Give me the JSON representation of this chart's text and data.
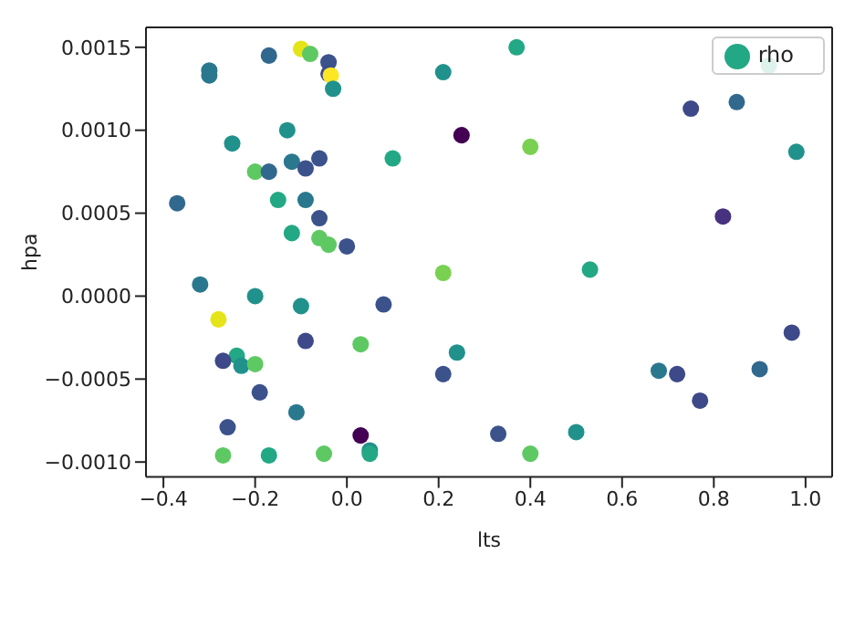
{
  "chart_data": {
    "type": "scatter",
    "xlabel": "lts",
    "ylabel": "hpa",
    "legend": "top right",
    "grid": false,
    "marker": "circle",
    "xlim": [
      -0.438,
      1.058
    ],
    "ylim": [
      -0.00109,
      0.00162
    ],
    "xticks": [
      {
        "value": -0.4,
        "label": "−0.4"
      },
      {
        "value": -0.2,
        "label": "−0.2"
      },
      {
        "value": 0,
        "label": "0.0"
      },
      {
        "value": 0.2,
        "label": "0.2"
      },
      {
        "value": 0.4,
        "label": "0.4"
      },
      {
        "value": 0.6,
        "label": "0.6"
      },
      {
        "value": 0.8,
        "label": "0.8"
      },
      {
        "value": 1.0,
        "label": "1.0"
      }
    ],
    "yticks": [
      {
        "value": -0.001,
        "label": "−0.0010"
      },
      {
        "value": -0.0005,
        "label": "−0.0005"
      },
      {
        "value": 0,
        "label": "0.0000"
      },
      {
        "value": 0.0005,
        "label": "0.0005"
      },
      {
        "value": 0.001,
        "label": "0.0010"
      },
      {
        "value": 0.0015,
        "label": "0.0015"
      }
    ],
    "series": [
      {
        "name": "rho",
        "color": "#22a884",
        "x": [
          -0.3,
          -0.3,
          -0.17,
          -0.1,
          -0.08,
          -0.04,
          -0.04,
          -0.035,
          -0.03,
          0.21,
          0.25,
          -0.25,
          -0.13,
          -0.2,
          -0.17,
          -0.12,
          -0.06,
          -0.09,
          0.1,
          -0.37,
          -0.15,
          -0.09,
          -0.06,
          -0.12,
          -0.06,
          -0.04,
          0.0,
          0.21,
          0.37,
          0.92,
          0.85,
          0.75,
          0.4,
          0.98,
          0.82,
          0.53,
          -0.32,
          -0.2,
          -0.1,
          0.08,
          -0.28,
          -0.09,
          0.03,
          -0.24,
          0.24,
          -0.27,
          -0.23,
          -0.2,
          0.21,
          -0.19,
          -0.11,
          -0.26,
          0.03,
          -0.27,
          -0.17,
          -0.05,
          0.05,
          0.05,
          0.33,
          0.5,
          0.4,
          0.68,
          0.72,
          0.77,
          0.9,
          0.97
        ],
        "values": [
          0.00136,
          0.00133,
          0.00145,
          0.00149,
          0.00146,
          0.00141,
          0.00134,
          0.00133,
          0.00125,
          0.00135,
          0.00097,
          0.00092,
          0.001,
          0.00075,
          0.00075,
          0.00081,
          0.00083,
          0.00077,
          0.00083,
          0.00056,
          0.00058,
          0.00058,
          0.00047,
          0.00038,
          0.00035,
          0.00031,
          0.0003,
          0.00014,
          0.0015,
          0.00139,
          0.00117,
          0.00113,
          0.0009,
          0.00087,
          0.00048,
          0.00016,
          7e-05,
          0.0,
          -6e-05,
          -5e-05,
          -0.00014,
          -0.00027,
          -0.00029,
          -0.00036,
          -0.00034,
          -0.00039,
          -0.00042,
          -0.00041,
          -0.00047,
          -0.00058,
          -0.0007,
          -0.00079,
          -0.00084,
          -0.00096,
          -0.00096,
          -0.00095,
          -0.00093,
          -0.00095,
          -0.00083,
          -0.00082,
          -0.00095,
          -0.00045,
          -0.00047,
          -0.00063,
          -0.00044,
          -0.00022
        ],
        "colors": [
          "#2a788e",
          "#2a788e",
          "#31688e",
          "#e5e419",
          "#5ec962",
          "#3b528b",
          "#3e4a89",
          "#fde725",
          "#21918c",
          "#21918c",
          "#440154",
          "#21918c",
          "#21918c",
          "#5ec962",
          "#31688e",
          "#2a788e",
          "#3b528b",
          "#3b528b",
          "#22a884",
          "#31688e",
          "#22a884",
          "#2a788e",
          "#3b528b",
          "#22a884",
          "#5ec962",
          "#5ec962",
          "#3b528b",
          "#7ad151",
          "#22a884",
          "#22a884",
          "#31688e",
          "#3e4989",
          "#7ad151",
          "#21918c",
          "#46327e",
          "#22a884",
          "#2a788e",
          "#21918c",
          "#21918c",
          "#3b528b",
          "#e5e419",
          "#3e4989",
          "#5ec962",
          "#22a884",
          "#21918c",
          "#3e4989",
          "#21918c",
          "#5ec962",
          "#3b528b",
          "#3b528b",
          "#2a788e",
          "#3b528b",
          "#440154",
          "#5ec962",
          "#22a884",
          "#5ec962",
          "#21918c",
          "#22a884",
          "#3b528b",
          "#21918c",
          "#5ec962",
          "#2a788e",
          "#3e4989",
          "#3e4989",
          "#31688e",
          "#3e4989"
        ]
      }
    ]
  }
}
